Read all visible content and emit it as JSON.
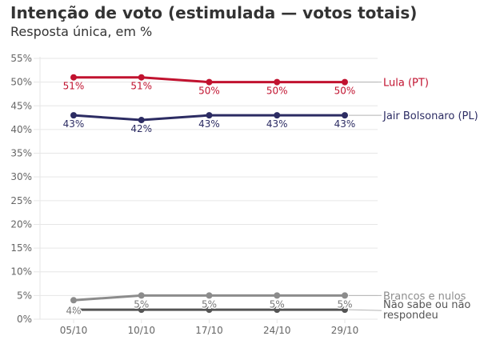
{
  "header": {
    "title": "Intenção de voto (estimulada — votos totais)",
    "subtitle": "Resposta única, em %"
  },
  "chart_data": {
    "type": "line",
    "title": "Intenção de voto (estimulada — votos totais)",
    "subtitle": "Resposta única, em %",
    "xlabel": "",
    "ylabel": "",
    "categories": [
      "05/10",
      "10/10",
      "17/10",
      "24/10",
      "29/10"
    ],
    "ylim": [
      0,
      55
    ],
    "yticks": [
      0,
      5,
      10,
      15,
      20,
      25,
      30,
      35,
      40,
      45,
      50,
      55
    ],
    "ytick_suffix": "%",
    "grid": true,
    "legend": "inline-right",
    "series": [
      {
        "name": "Lula (PT)",
        "color": "#c1122f",
        "values": [
          51,
          51,
          50,
          50,
          50
        ],
        "labels": [
          "51%",
          "51%",
          "50%",
          "50%",
          "50%"
        ],
        "label_color": "#c1122f"
      },
      {
        "name": "Jair Bolsonaro (PL)",
        "color": "#2c2c63",
        "values": [
          43,
          42,
          43,
          43,
          43
        ],
        "labels": [
          "43%",
          "42%",
          "43%",
          "43%",
          "43%"
        ],
        "label_color": "#2c2c63"
      },
      {
        "name": "Brancos e nulos",
        "color": "#8c8c8c",
        "values": [
          4,
          5,
          5,
          5,
          5
        ],
        "labels": [
          "4%",
          "5%",
          "5%",
          "5%",
          "5%"
        ],
        "label_color": "#777777"
      },
      {
        "name": "Não sabe ou não respondeu",
        "name_lines": [
          "Não sabe ou não",
          "respondeu"
        ],
        "color": "#555555",
        "values": [
          2,
          2,
          2,
          2,
          2
        ],
        "labels": [],
        "label_color": "#555555"
      }
    ]
  }
}
